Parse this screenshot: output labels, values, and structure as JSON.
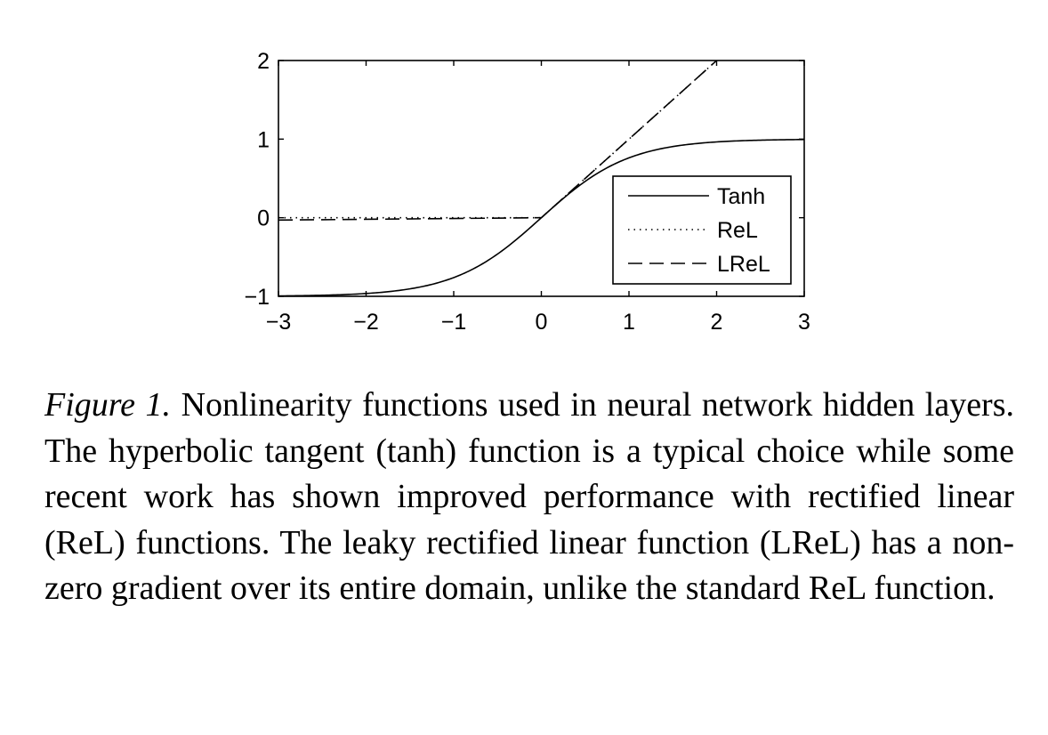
{
  "chart_data": {
    "type": "line",
    "title": "",
    "xlabel": "",
    "ylabel": "",
    "xlim": [
      -3,
      3
    ],
    "ylim": [
      -1,
      2
    ],
    "xticks": [
      -3,
      -2,
      -1,
      0,
      1,
      2,
      3
    ],
    "yticks": [
      -1,
      0,
      1,
      2
    ],
    "xtick_labels": [
      "−3",
      "−2",
      "−1",
      "0",
      "1",
      "2",
      "3"
    ],
    "ytick_labels": [
      "−1",
      "0",
      "1",
      "2"
    ],
    "grid": false,
    "legend_position": "lower-right",
    "series": [
      {
        "name": "Tanh",
        "line_style": "solid",
        "function": "tanh",
        "x": [
          -3,
          -2.5,
          -2,
          -1.5,
          -1,
          -0.5,
          0,
          0.5,
          1,
          1.5,
          2,
          2.5,
          3
        ],
        "y": [
          -0.995,
          -0.987,
          -0.964,
          -0.905,
          -0.762,
          -0.462,
          0,
          0.462,
          0.762,
          0.905,
          0.964,
          0.987,
          0.995
        ]
      },
      {
        "name": "ReL",
        "line_style": "dotted",
        "function": "relu",
        "x": [
          -3,
          0,
          2
        ],
        "y": [
          0,
          0,
          2
        ]
      },
      {
        "name": "LReL",
        "line_style": "dashed",
        "function": "leaky_relu",
        "x": [
          -3,
          0,
          2
        ],
        "y": [
          -0.03,
          0,
          2
        ]
      }
    ]
  },
  "caption": {
    "label": "Figure 1.",
    "text": "Nonlinearity functions used in neural network hidden layers. The hyperbolic tangent (tanh) function is a typical choice while some recent work has shown improved performance with rectified linear (ReL) functions. The leaky rectified linear function (LReL) has a non-zero gradient over its entire domain, unlike the standard ReL function."
  }
}
